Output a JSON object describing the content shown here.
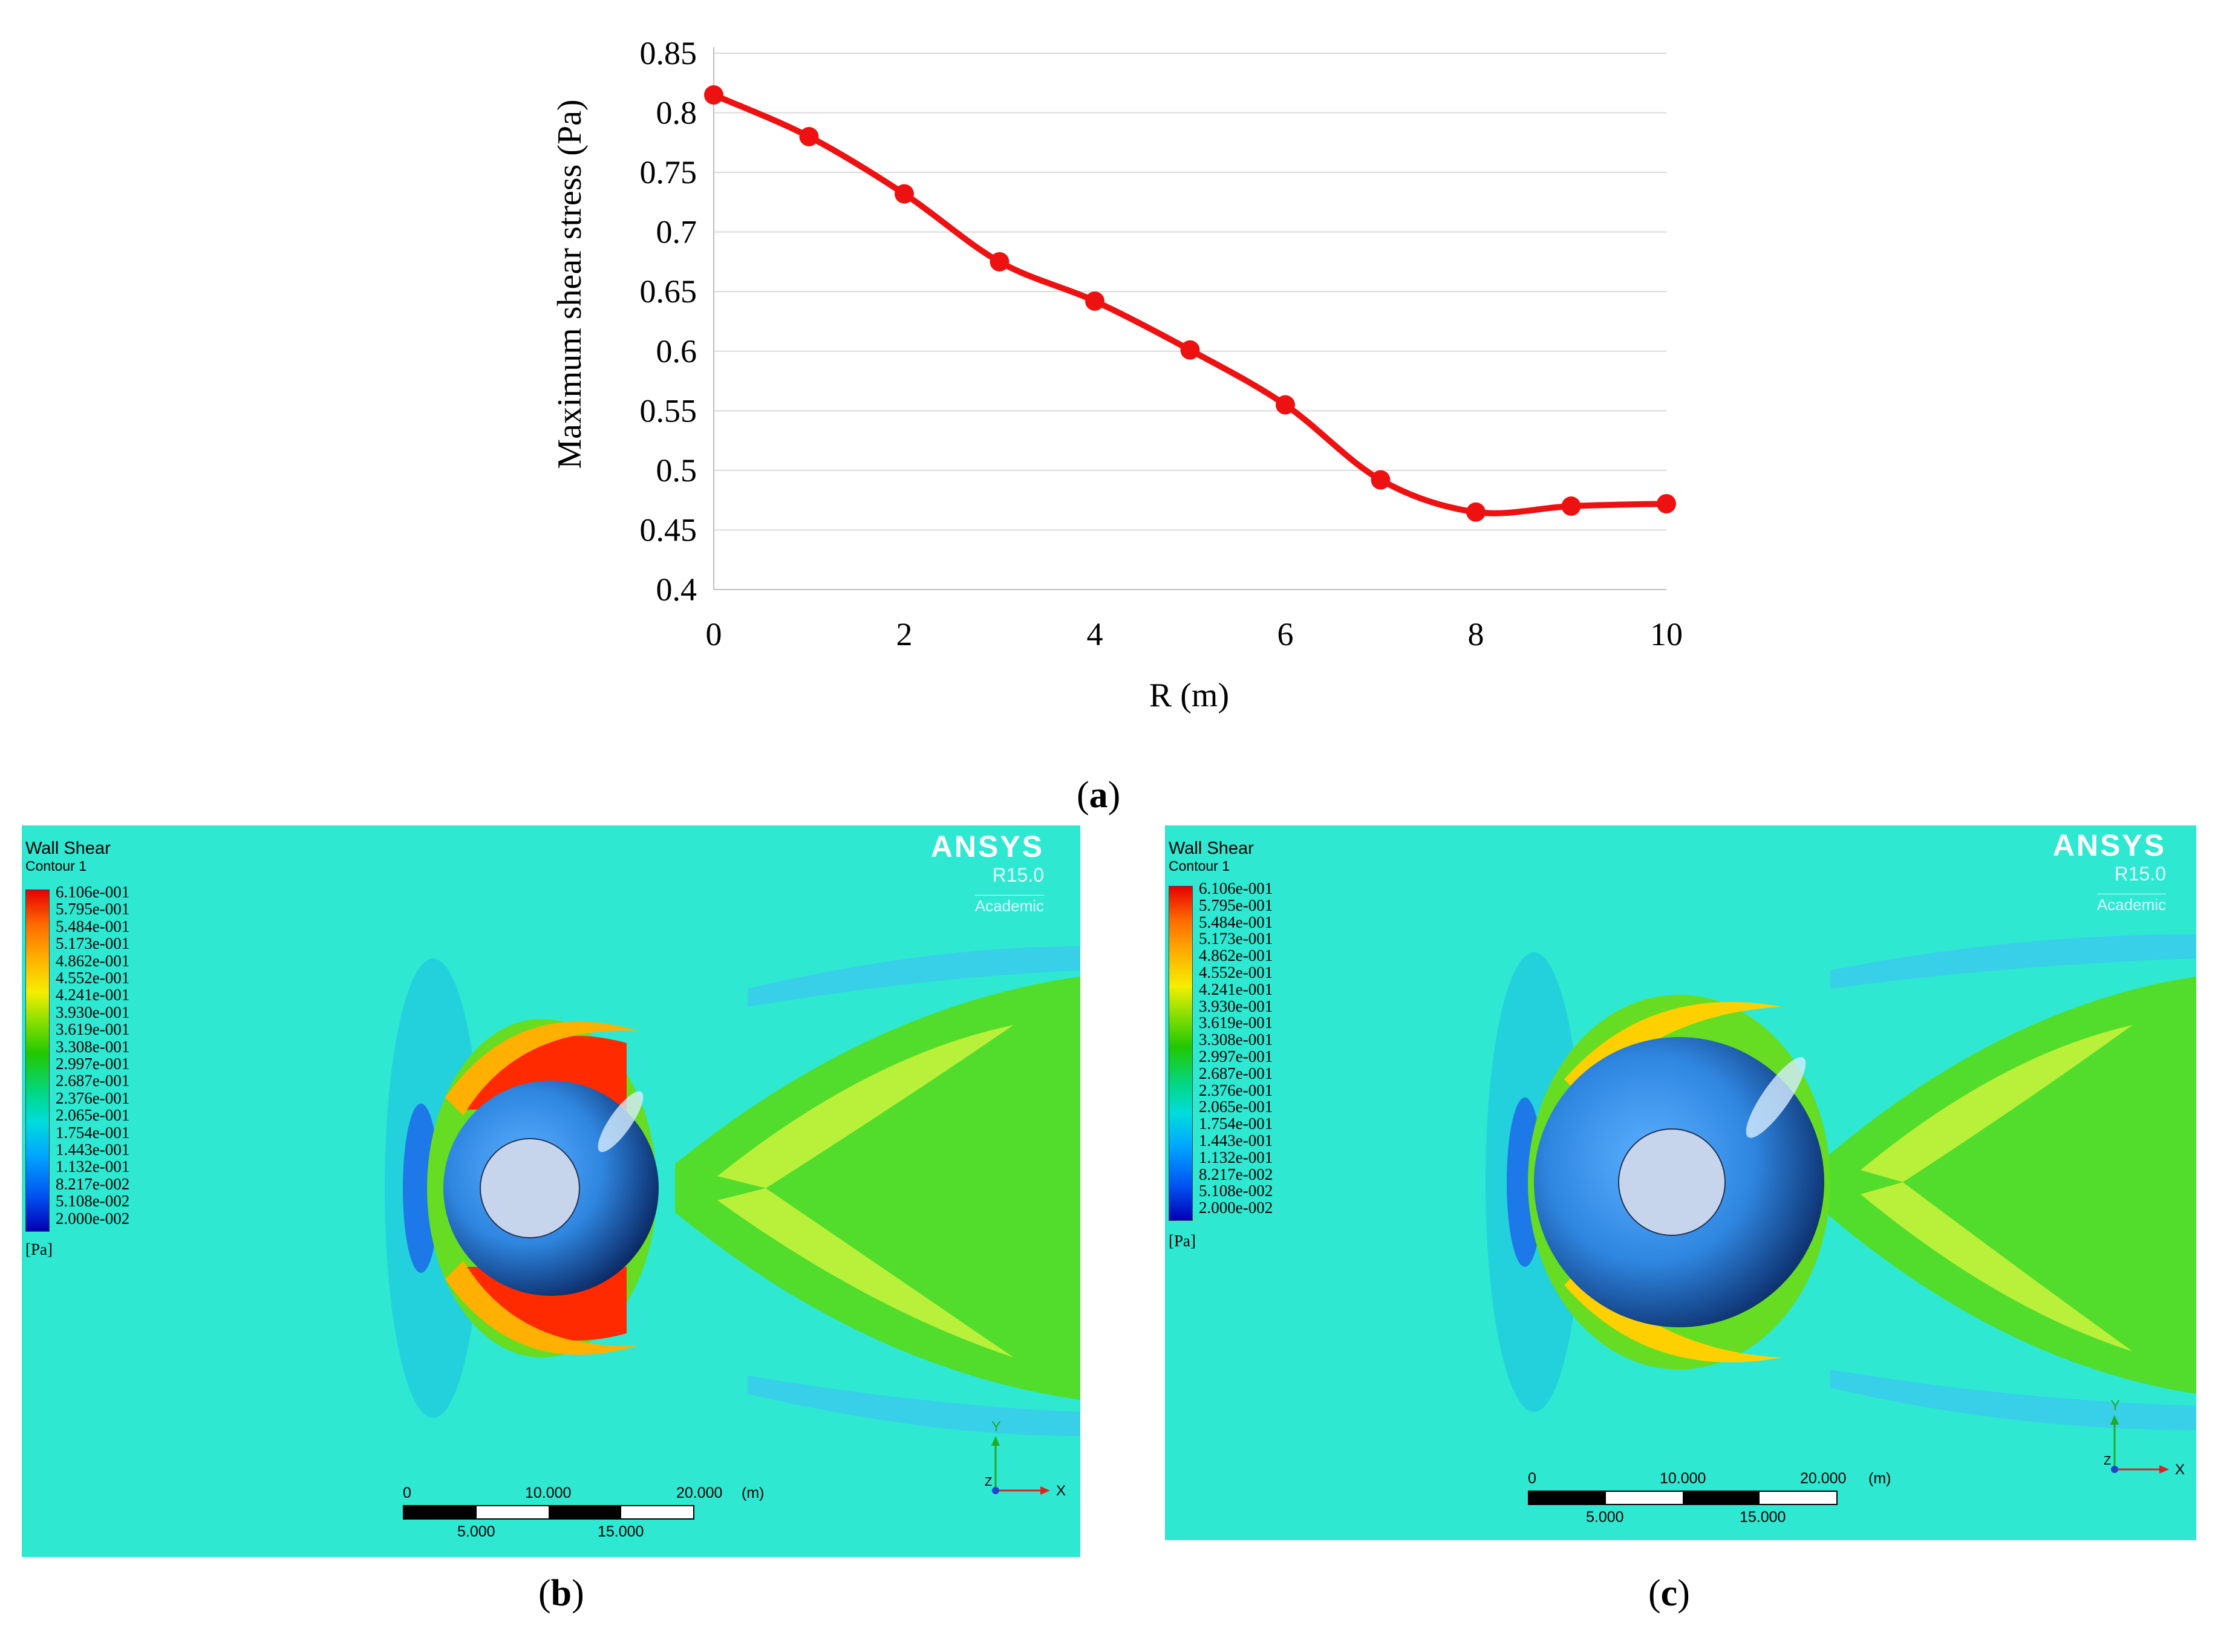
{
  "chart_data": {
    "type": "line",
    "title": "",
    "xlabel": "R (m)",
    "ylabel": "Maximum  shear stress  (Pa)",
    "x": [
      0,
      1,
      2,
      3,
      4,
      5,
      6,
      7,
      8,
      9,
      10
    ],
    "series": [
      {
        "name": "Maximum shear stress",
        "color": "#ee1111",
        "values": [
          0.815,
          0.78,
          0.732,
          0.675,
          0.642,
          0.601,
          0.555,
          0.492,
          0.465,
          0.47,
          0.472
        ]
      }
    ],
    "xlim": [
      0,
      10
    ],
    "ylim": [
      0.4,
      0.85
    ],
    "x_ticks": [
      "0",
      "2",
      "4",
      "6",
      "8",
      "10"
    ],
    "y_ticks": [
      "0.4",
      "0.45",
      "0.5",
      "0.55",
      "0.6",
      "0.65",
      "0.7",
      "0.75",
      "0.8",
      "0.85"
    ],
    "grid": "horizontal"
  },
  "labels": {
    "a": {
      "open": "(",
      "letter": "a",
      "close": ")"
    },
    "b": {
      "open": "(",
      "letter": "b",
      "close": ")"
    },
    "c": {
      "open": "(",
      "letter": "c",
      "close": ")"
    }
  },
  "contour_panels": [
    {
      "legend_title": "Wall Shear",
      "legend_subtitle": "Contour 1",
      "legend_values": [
        "6.106e-001",
        "5.795e-001",
        "5.484e-001",
        "5.173e-001",
        "4.862e-001",
        "4.552e-001",
        "4.241e-001",
        "3.930e-001",
        "3.619e-001",
        "3.308e-001",
        "2.997e-001",
        "2.687e-001",
        "2.376e-001",
        "2.065e-001",
        "1.754e-001",
        "1.443e-001",
        "1.132e-001",
        "8.217e-002",
        "5.108e-002",
        "2.000e-002"
      ],
      "legend_unit": "[Pa]",
      "brand_name": "ANSYS",
      "brand_release": "R15.0",
      "brand_edition": "Academic",
      "scale_top": [
        "0",
        "10.000",
        "20.000",
        "(m)"
      ],
      "scale_bottom": [
        "5.000",
        "15.000"
      ],
      "axes": {
        "x": "X",
        "y": "Y",
        "z": "Z"
      }
    },
    {
      "legend_title": "Wall Shear",
      "legend_subtitle": "Contour 1",
      "legend_values": [
        "6.106e-001",
        "5.795e-001",
        "5.484e-001",
        "5.173e-001",
        "4.862e-001",
        "4.552e-001",
        "4.241e-001",
        "3.930e-001",
        "3.619e-001",
        "3.308e-001",
        "2.997e-001",
        "2.687e-001",
        "2.376e-001",
        "2.065e-001",
        "1.754e-001",
        "1.443e-001",
        "1.132e-001",
        "8.217e-002",
        "5.108e-002",
        "2.000e-002"
      ],
      "legend_unit": "[Pa]",
      "brand_name": "ANSYS",
      "brand_release": "R15.0",
      "brand_edition": "Academic",
      "scale_top": [
        "0",
        "10.000",
        "20.000",
        "(m)"
      ],
      "scale_bottom": [
        "5.000",
        "15.000"
      ],
      "axes": {
        "x": "X",
        "y": "Y",
        "z": "Z"
      }
    }
  ],
  "colors": {
    "series_line": "#ee1111",
    "grid": "#d9d9d9",
    "contour_background": "#2ee8d2",
    "sphere": "#2f86e0",
    "core": "#c6d4ec"
  }
}
